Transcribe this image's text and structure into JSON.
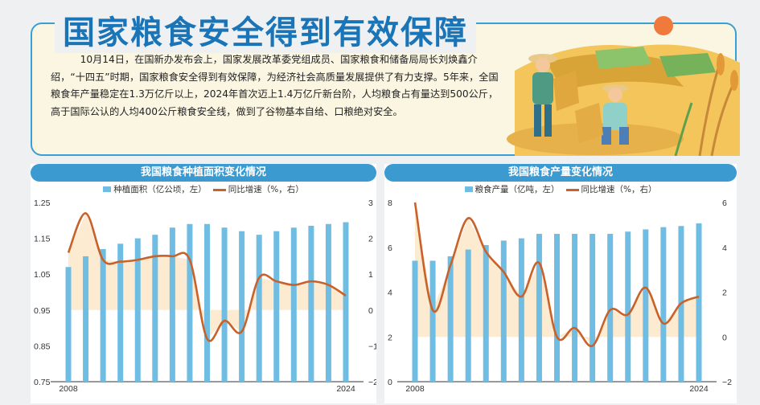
{
  "header": {
    "title": "国家粮食安全得到有效保障",
    "paragraph": "10月14日，在国新办发布会上，国家发展改革委党组成员、国家粮食和储备局局长刘焕鑫介绍，“十四五”时期，国家粮食安全得到有效保障，为经济社会高质量发展提供了有力支撑。5年来，全国粮食年产量稳定在1.3万亿斤以上，2024年首次迈上1.4万亿斤新台阶，人均粮食占有量达到500公斤，高于国际公认的人均400公斤粮食安全线，做到了谷物基本自给、口粮绝对安全。"
  },
  "colors": {
    "bar": "#6fbde3",
    "line": "#c8612a",
    "fill": "#fce7c8",
    "accent": "#3b9ad0"
  },
  "chart_data": [
    {
      "type": "bar",
      "title": "我国粮食种植面积变化情况",
      "legend": [
        "种植面积（亿公顷，左）",
        "同比增速（%，右）"
      ],
      "x": [
        2008,
        2009,
        2010,
        2011,
        2012,
        2013,
        2014,
        2015,
        2016,
        2017,
        2018,
        2019,
        2020,
        2021,
        2022,
        2023,
        2024
      ],
      "x_tick_labels": [
        "2008",
        "2024"
      ],
      "series": [
        {
          "name": "种植面积（亿公顷，左）",
          "axis": "left",
          "kind": "bar",
          "values": [
            1.07,
            1.1,
            1.12,
            1.135,
            1.15,
            1.16,
            1.18,
            1.19,
            1.19,
            1.18,
            1.17,
            1.16,
            1.17,
            1.18,
            1.185,
            1.19,
            1.195
          ]
        },
        {
          "name": "同比增速（%，右）",
          "axis": "right",
          "kind": "line",
          "values": [
            1.6,
            2.7,
            1.4,
            1.35,
            1.4,
            1.5,
            1.5,
            1.4,
            -0.8,
            -0.3,
            -0.6,
            0.9,
            0.8,
            0.7,
            0.8,
            0.7,
            0.4
          ]
        }
      ],
      "left_axis": {
        "ticks": [
          "1.25",
          "1.15",
          "1.05",
          "0.95",
          "0.85",
          "0.75"
        ],
        "ylim": [
          0.75,
          1.25
        ]
      },
      "right_axis": {
        "ticks": [
          "3",
          "2",
          "1",
          "0",
          "−1",
          "−2"
        ],
        "ylim": [
          -2,
          3
        ]
      }
    },
    {
      "type": "bar",
      "title": "我国粮食产量变化情况",
      "legend": [
        "粮食产量（亿吨，左）",
        "同比增速（%，右）"
      ],
      "x": [
        2008,
        2009,
        2010,
        2011,
        2012,
        2013,
        2014,
        2015,
        2016,
        2017,
        2018,
        2019,
        2020,
        2021,
        2022,
        2023,
        2024
      ],
      "x_tick_labels": [
        "2008",
        "2024"
      ],
      "series": [
        {
          "name": "粮食产量（亿吨，左）",
          "axis": "left",
          "kind": "bar",
          "values": [
            5.4,
            5.4,
            5.6,
            5.9,
            6.1,
            6.3,
            6.4,
            6.6,
            6.6,
            6.6,
            6.6,
            6.6,
            6.7,
            6.8,
            6.9,
            6.95,
            7.07
          ]
        },
        {
          "name": "同比增速（%，右）",
          "axis": "right",
          "kind": "line",
          "values": [
            6.0,
            1.2,
            3.2,
            5.3,
            3.8,
            2.9,
            1.8,
            3.3,
            0.0,
            0.4,
            -0.4,
            1.2,
            1.0,
            2.2,
            0.6,
            1.5,
            1.8
          ]
        }
      ],
      "left_axis": {
        "ticks": [
          "8",
          "6",
          "4",
          "2",
          "0"
        ],
        "ylim": [
          0,
          8
        ]
      },
      "right_axis": {
        "ticks": [
          "6",
          "4",
          "2",
          "0",
          "−2"
        ],
        "ylim": [
          -2,
          6
        ]
      }
    }
  ]
}
